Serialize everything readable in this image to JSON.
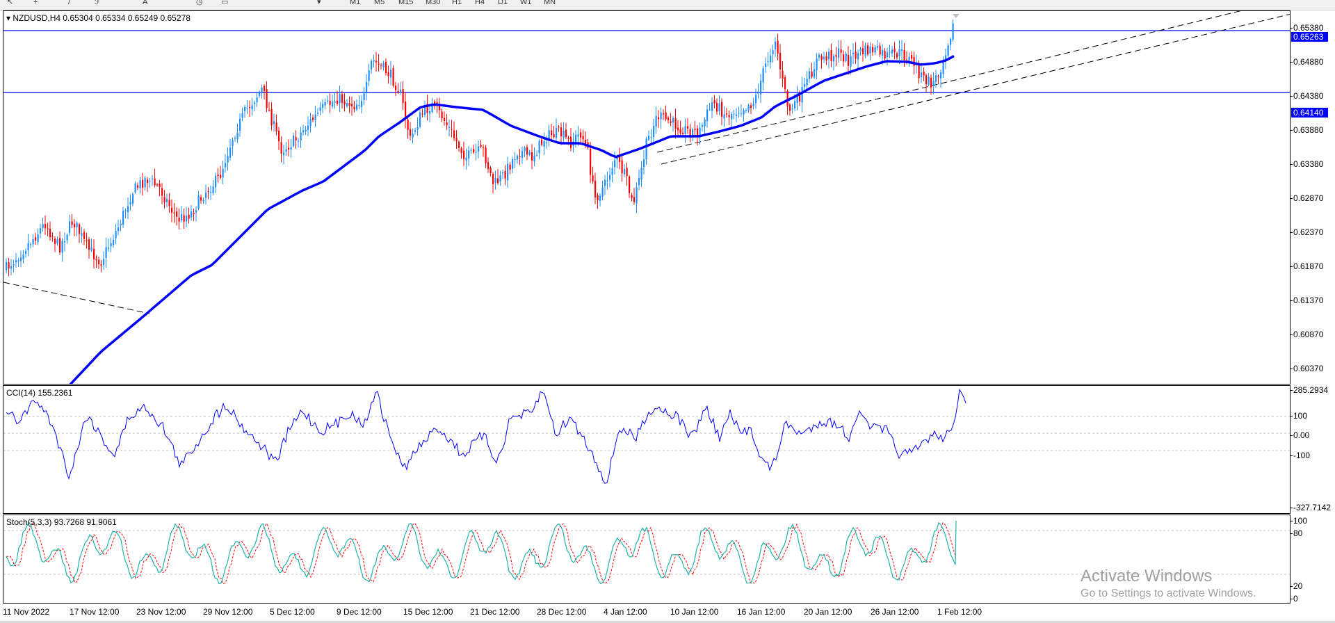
{
  "toolbar": {
    "timeframes": [
      "M1",
      "M5",
      "M15",
      "M30",
      "H1",
      "H4",
      "D1",
      "W1",
      "MN"
    ]
  },
  "chart": {
    "symbol_header": "NZDUSD,H4  0.65304 0.65334 0.65249 0.65278",
    "price_ticks": [
      "0.65380",
      "0.64880",
      "0.64380",
      "0.63880",
      "0.63380",
      "0.62870",
      "0.62370",
      "0.61870",
      "0.61370",
      "0.60870",
      "0.60370"
    ],
    "hline_upper": "0.65263",
    "hline_lower": "0.64140",
    "ma_color": "#0000ff"
  },
  "cci": {
    "label": "CCI(14) 155.2361",
    "ticks": [
      "285.2934",
      "100",
      "0.00",
      "-100",
      "-327.7142"
    ]
  },
  "stoch": {
    "label": "Stoch(5,3,3) 93.7268 91.9061",
    "ticks": [
      "100",
      "80",
      "20",
      "0"
    ],
    "main_color": "#20b2aa",
    "signal_color": "#ff0000"
  },
  "time_axis": [
    "11 Nov 2022",
    "17 Nov 12:00",
    "23 Nov 12:00",
    "29 Nov 12:00",
    "5 Dec 12:00",
    "9 Dec 12:00",
    "15 Dec 12:00",
    "21 Dec 12:00",
    "28 Dec 12:00",
    "4 Jan 12:00",
    "10 Jan 12:00",
    "16 Jan 12:00",
    "20 Jan 12:00",
    "26 Jan 12:00",
    "1 Feb 12:00"
  ],
  "watermark": {
    "title": "Activate Windows",
    "subtitle": "Go to Settings to activate Windows."
  },
  "colors": {
    "bull": "#1e90ff",
    "bear": "#ff0000",
    "line": "#0000ff",
    "trend": "#000000"
  }
}
